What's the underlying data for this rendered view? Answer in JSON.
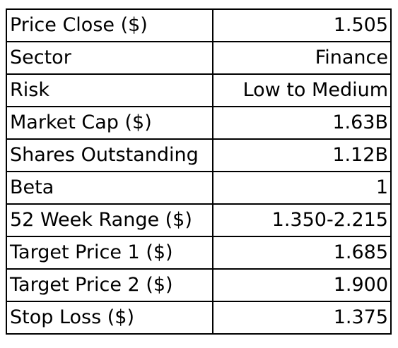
{
  "stock_summary": {
    "rows": [
      {
        "label": "Price Close ($)",
        "value": "1.505"
      },
      {
        "label": "Sector",
        "value": "Finance"
      },
      {
        "label": "Risk",
        "value": "Low to Medium"
      },
      {
        "label": "Market Cap ($)",
        "value": "1.63B"
      },
      {
        "label": "Shares Outstanding",
        "value": "1.12B"
      },
      {
        "label": "Beta",
        "value": "1"
      },
      {
        "label": "52 Week Range ($)",
        "value": "1.350-2.215"
      },
      {
        "label": "Target Price 1 ($)",
        "value": "1.685"
      },
      {
        "label": "Target Price 2 ($)",
        "value": "1.900"
      },
      {
        "label": "Stop Loss ($)",
        "value": "1.375"
      }
    ]
  }
}
